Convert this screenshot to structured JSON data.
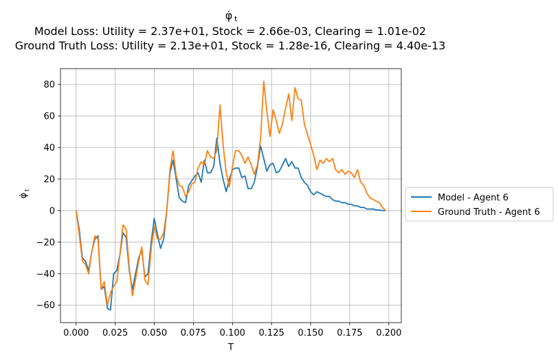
{
  "chart_data": {
    "type": "line",
    "title_symbol": "φ̇",
    "title_symbol_sub": "t",
    "title_line2": "Model Loss: Utility = 2.37e+01, Stock = 2.66e-03, Clearing = 1.01e-02",
    "title_line3": "Ground Truth Loss: Utility = 2.13e+01, Stock = 1.28e-16, Clearing = 4.40e-13",
    "xlabel": "T",
    "ylabel_symbol": "φ̇",
    "ylabel_sub": "t",
    "xlim": [
      -0.01,
      0.208
    ],
    "ylim": [
      -71,
      90
    ],
    "xticks": [
      0.0,
      0.025,
      0.05,
      0.075,
      0.1,
      0.125,
      0.15,
      0.175,
      0.2
    ],
    "xtick_labels": [
      "0.000",
      "0.025",
      "0.050",
      "0.075",
      "0.100",
      "0.125",
      "0.150",
      "0.175",
      "0.200"
    ],
    "yticks": [
      -60,
      -40,
      -20,
      0,
      20,
      40,
      60,
      80
    ],
    "ytick_labels": [
      "−60",
      "−40",
      "−20",
      "0",
      "20",
      "40",
      "60",
      "80"
    ],
    "grid": true,
    "legend_position": "outside-right",
    "series": [
      {
        "name": "Model - Agent 6",
        "color": "#1f77b4",
        "x": [
          0.0,
          0.002,
          0.004,
          0.006,
          0.008,
          0.01,
          0.012,
          0.014,
          0.016,
          0.018,
          0.02,
          0.022,
          0.024,
          0.026,
          0.028,
          0.03,
          0.032,
          0.034,
          0.036,
          0.038,
          0.04,
          0.042,
          0.044,
          0.046,
          0.048,
          0.05,
          0.052,
          0.054,
          0.056,
          0.058,
          0.06,
          0.062,
          0.064,
          0.066,
          0.068,
          0.07,
          0.072,
          0.074,
          0.076,
          0.078,
          0.08,
          0.082,
          0.084,
          0.086,
          0.088,
          0.09,
          0.092,
          0.094,
          0.096,
          0.098,
          0.1,
          0.102,
          0.104,
          0.106,
          0.108,
          0.11,
          0.112,
          0.114,
          0.116,
          0.118,
          0.12,
          0.122,
          0.124,
          0.126,
          0.128,
          0.13,
          0.132,
          0.134,
          0.136,
          0.138,
          0.14,
          0.142,
          0.144,
          0.146,
          0.148,
          0.15,
          0.152,
          0.154,
          0.156,
          0.158,
          0.16,
          0.162,
          0.164,
          0.166,
          0.168,
          0.17,
          0.172,
          0.174,
          0.176,
          0.178,
          0.18,
          0.182,
          0.184,
          0.186,
          0.188,
          0.19,
          0.192,
          0.194,
          0.196,
          0.198
        ],
        "values": [
          0,
          -12,
          -30,
          -32,
          -38,
          -26,
          -18,
          -16,
          -50,
          -48,
          -62,
          -63,
          -40,
          -38,
          -28,
          -14,
          -17,
          -38,
          -50,
          -40,
          -30,
          -25,
          -42,
          -40,
          -20,
          -5,
          -15,
          -24,
          -18,
          0,
          24,
          32,
          20,
          8,
          6,
          5,
          16,
          19,
          22,
          24,
          18,
          32,
          24,
          24,
          28,
          46,
          30,
          20,
          12,
          20,
          26,
          27,
          27,
          21,
          22,
          14,
          14,
          18,
          28,
          41,
          33,
          25,
          29,
          30,
          24,
          25,
          29,
          33,
          28,
          31,
          27,
          27,
          21,
          18,
          16,
          12,
          10,
          12,
          11,
          10,
          9,
          9,
          7,
          6,
          6,
          5,
          5,
          4,
          4,
          3,
          3,
          2,
          2,
          1,
          1,
          1,
          0.5,
          0.3,
          0.1,
          0
        ]
      },
      {
        "name": "Ground Truth - Agent 6",
        "color": "#ff7f0e",
        "x": [
          0.0,
          0.002,
          0.004,
          0.006,
          0.008,
          0.01,
          0.012,
          0.014,
          0.016,
          0.018,
          0.02,
          0.022,
          0.024,
          0.026,
          0.028,
          0.03,
          0.032,
          0.034,
          0.036,
          0.038,
          0.04,
          0.042,
          0.044,
          0.046,
          0.048,
          0.05,
          0.052,
          0.054,
          0.056,
          0.058,
          0.06,
          0.062,
          0.064,
          0.066,
          0.068,
          0.07,
          0.072,
          0.074,
          0.076,
          0.078,
          0.08,
          0.082,
          0.084,
          0.086,
          0.088,
          0.09,
          0.092,
          0.094,
          0.096,
          0.098,
          0.1,
          0.102,
          0.104,
          0.106,
          0.108,
          0.11,
          0.112,
          0.114,
          0.116,
          0.118,
          0.12,
          0.122,
          0.124,
          0.126,
          0.128,
          0.13,
          0.132,
          0.134,
          0.136,
          0.138,
          0.14,
          0.142,
          0.144,
          0.146,
          0.148,
          0.15,
          0.152,
          0.154,
          0.156,
          0.158,
          0.16,
          0.162,
          0.164,
          0.166,
          0.168,
          0.17,
          0.172,
          0.174,
          0.176,
          0.178,
          0.18,
          0.182,
          0.184,
          0.186,
          0.188,
          0.19,
          0.192,
          0.194,
          0.196,
          0.198
        ],
        "values": [
          0,
          -15,
          -32,
          -34,
          -40,
          -26,
          -16,
          -18,
          -50,
          -45,
          -60,
          -52,
          -48,
          -45,
          -28,
          -9,
          -12,
          -36,
          -54,
          -44,
          -32,
          -23,
          -44,
          -47,
          -24,
          -10,
          -18,
          -18,
          -14,
          0,
          26,
          38,
          22,
          16,
          15,
          9,
          12,
          17,
          18,
          27,
          31,
          29,
          38,
          34,
          33,
          38,
          67,
          42,
          24,
          15,
          28,
          38,
          38,
          35,
          30,
          34,
          29,
          23,
          29,
          46,
          82,
          63,
          47,
          64,
          57,
          49,
          55,
          65,
          74,
          57,
          78,
          71,
          70,
          55,
          48,
          42,
          35,
          26,
          32,
          30,
          33,
          31,
          33,
          26,
          24,
          26,
          23,
          25,
          24,
          21,
          26,
          18,
          16,
          11,
          8,
          7,
          6,
          5,
          2,
          0
        ]
      }
    ]
  }
}
